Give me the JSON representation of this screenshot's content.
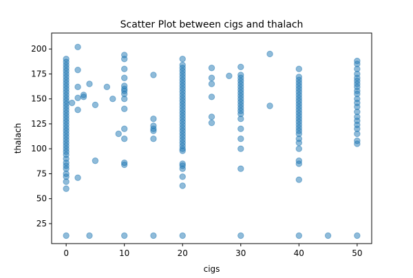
{
  "chart_data": {
    "type": "scatter",
    "title": "Scatter Plot between cigs and thalach",
    "xlabel": "cigs",
    "ylabel": "thalach",
    "xlim": [
      -2.5,
      52.5
    ],
    "ylim": [
      5,
      216
    ],
    "xticks": [
      0,
      10,
      20,
      30,
      40,
      50
    ],
    "yticks": [
      25,
      50,
      75,
      100,
      125,
      150,
      175,
      200
    ],
    "grid": false,
    "legend": "none",
    "marker_color": "#1f77b4",
    "marker_alpha": 0.5,
    "points": [
      [
        0,
        13
      ],
      [
        0,
        60
      ],
      [
        0,
        67
      ],
      [
        0,
        72
      ],
      [
        0,
        75
      ],
      [
        0,
        80
      ],
      [
        0,
        83
      ],
      [
        0,
        86
      ],
      [
        0,
        90
      ],
      [
        0,
        94
      ],
      [
        0,
        97
      ],
      [
        0,
        100
      ],
      [
        0,
        103
      ],
      [
        0,
        106
      ],
      [
        0,
        109
      ],
      [
        0,
        112
      ],
      [
        0,
        115
      ],
      [
        0,
        118
      ],
      [
        0,
        121
      ],
      [
        0,
        124
      ],
      [
        0,
        127
      ],
      [
        0,
        130
      ],
      [
        0,
        133
      ],
      [
        0,
        136
      ],
      [
        0,
        139
      ],
      [
        0,
        142
      ],
      [
        0,
        145
      ],
      [
        0,
        148
      ],
      [
        0,
        151
      ],
      [
        0,
        154
      ],
      [
        0,
        157
      ],
      [
        0,
        160
      ],
      [
        0,
        163
      ],
      [
        0,
        166
      ],
      [
        0,
        169
      ],
      [
        0,
        172
      ],
      [
        0,
        175
      ],
      [
        0,
        178
      ],
      [
        0,
        181
      ],
      [
        0,
        184
      ],
      [
        0,
        187
      ],
      [
        0,
        190
      ],
      [
        1,
        146
      ],
      [
        2,
        71
      ],
      [
        2,
        139
      ],
      [
        2,
        151
      ],
      [
        2,
        162
      ],
      [
        2,
        179
      ],
      [
        2,
        202
      ],
      [
        3,
        152
      ],
      [
        3,
        154
      ],
      [
        4,
        13
      ],
      [
        4,
        165
      ],
      [
        5,
        88
      ],
      [
        5,
        144
      ],
      [
        7,
        162
      ],
      [
        8,
        150
      ],
      [
        9,
        115
      ],
      [
        10,
        13
      ],
      [
        10,
        84
      ],
      [
        10,
        86
      ],
      [
        10,
        110
      ],
      [
        10,
        120
      ],
      [
        10,
        140
      ],
      [
        10,
        150
      ],
      [
        10,
        155
      ],
      [
        10,
        158
      ],
      [
        10,
        160
      ],
      [
        10,
        163
      ],
      [
        10,
        171
      ],
      [
        10,
        180
      ],
      [
        10,
        190
      ],
      [
        10,
        194
      ],
      [
        15,
        13
      ],
      [
        15,
        110
      ],
      [
        15,
        118
      ],
      [
        15,
        120
      ],
      [
        15,
        123
      ],
      [
        15,
        130
      ],
      [
        15,
        174
      ],
      [
        20,
        13
      ],
      [
        20,
        63
      ],
      [
        20,
        72
      ],
      [
        20,
        80
      ],
      [
        20,
        83
      ],
      [
        20,
        85
      ],
      [
        20,
        98
      ],
      [
        20,
        100
      ],
      [
        20,
        103
      ],
      [
        20,
        106
      ],
      [
        20,
        109
      ],
      [
        20,
        112
      ],
      [
        20,
        115
      ],
      [
        20,
        118
      ],
      [
        20,
        121
      ],
      [
        20,
        124
      ],
      [
        20,
        127
      ],
      [
        20,
        130
      ],
      [
        20,
        133
      ],
      [
        20,
        136
      ],
      [
        20,
        139
      ],
      [
        20,
        142
      ],
      [
        20,
        145
      ],
      [
        20,
        148
      ],
      [
        20,
        151
      ],
      [
        20,
        154
      ],
      [
        20,
        157
      ],
      [
        20,
        160
      ],
      [
        20,
        163
      ],
      [
        20,
        166
      ],
      [
        20,
        169
      ],
      [
        20,
        172
      ],
      [
        20,
        175
      ],
      [
        20,
        178
      ],
      [
        20,
        181
      ],
      [
        20,
        184
      ],
      [
        20,
        190
      ],
      [
        25,
        126
      ],
      [
        25,
        132
      ],
      [
        25,
        152
      ],
      [
        25,
        165
      ],
      [
        25,
        171
      ],
      [
        25,
        181
      ],
      [
        28,
        173
      ],
      [
        30,
        13
      ],
      [
        30,
        80
      ],
      [
        30,
        100
      ],
      [
        30,
        110
      ],
      [
        30,
        120
      ],
      [
        30,
        130
      ],
      [
        30,
        135
      ],
      [
        30,
        138
      ],
      [
        30,
        141
      ],
      [
        30,
        144
      ],
      [
        30,
        147
      ],
      [
        30,
        150
      ],
      [
        30,
        153
      ],
      [
        30,
        156
      ],
      [
        30,
        159
      ],
      [
        30,
        162
      ],
      [
        30,
        165
      ],
      [
        30,
        168
      ],
      [
        30,
        171
      ],
      [
        30,
        174
      ],
      [
        30,
        182
      ],
      [
        35,
        143
      ],
      [
        35,
        195
      ],
      [
        40,
        13
      ],
      [
        40,
        69
      ],
      [
        40,
        85
      ],
      [
        40,
        88
      ],
      [
        40,
        100
      ],
      [
        40,
        106
      ],
      [
        40,
        110
      ],
      [
        40,
        115
      ],
      [
        40,
        118
      ],
      [
        40,
        121
      ],
      [
        40,
        124
      ],
      [
        40,
        127
      ],
      [
        40,
        130
      ],
      [
        40,
        133
      ],
      [
        40,
        136
      ],
      [
        40,
        139
      ],
      [
        40,
        142
      ],
      [
        40,
        145
      ],
      [
        40,
        148
      ],
      [
        40,
        151
      ],
      [
        40,
        154
      ],
      [
        40,
        157
      ],
      [
        40,
        160
      ],
      [
        40,
        163
      ],
      [
        40,
        166
      ],
      [
        40,
        169
      ],
      [
        40,
        172
      ],
      [
        40,
        180
      ],
      [
        45,
        13
      ],
      [
        50,
        13
      ],
      [
        50,
        105
      ],
      [
        50,
        108
      ],
      [
        50,
        115
      ],
      [
        50,
        120
      ],
      [
        50,
        124
      ],
      [
        50,
        128
      ],
      [
        50,
        132
      ],
      [
        50,
        137
      ],
      [
        50,
        142
      ],
      [
        50,
        146
      ],
      [
        50,
        150
      ],
      [
        50,
        155
      ],
      [
        50,
        158
      ],
      [
        50,
        162
      ],
      [
        50,
        165
      ],
      [
        50,
        168
      ],
      [
        50,
        171
      ],
      [
        50,
        175
      ],
      [
        50,
        180
      ],
      [
        50,
        185
      ],
      [
        50,
        188
      ]
    ]
  }
}
